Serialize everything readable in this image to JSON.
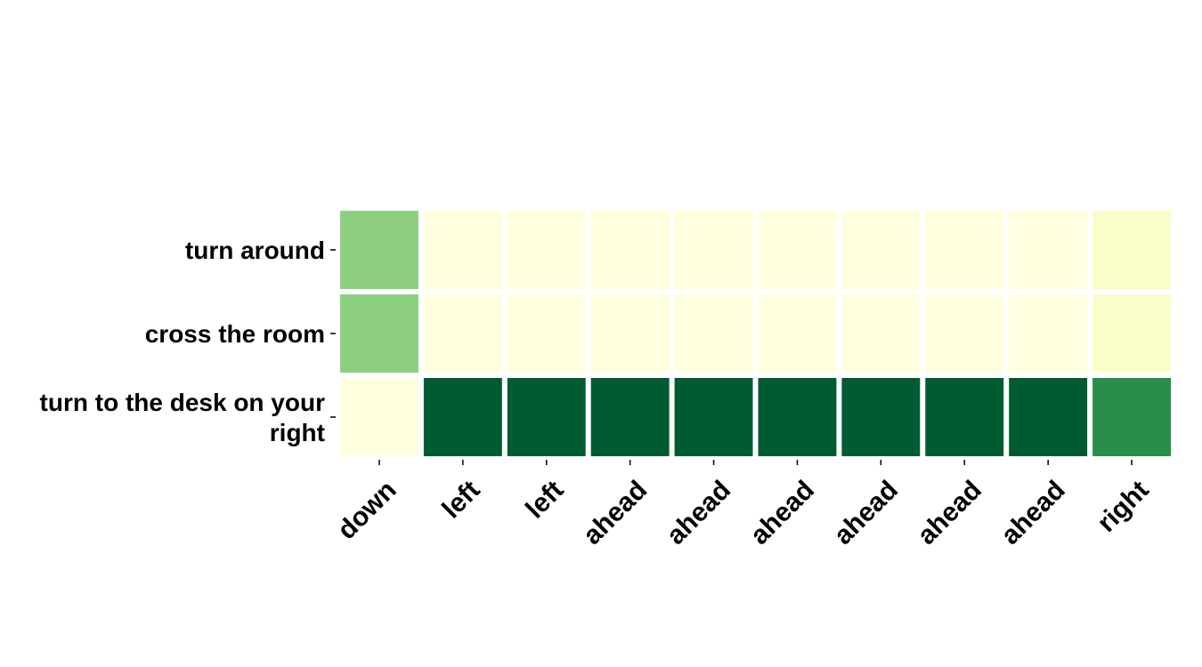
{
  "chart_data": {
    "type": "heatmap",
    "title": "",
    "xlabel": "",
    "ylabel": "",
    "x_categories": [
      "down",
      "left",
      "left",
      "ahead",
      "ahead",
      "ahead",
      "ahead",
      "ahead",
      "ahead",
      "right"
    ],
    "y_categories": [
      [
        "turn around"
      ],
      [
        "cross the room"
      ],
      [
        "turn to the desk on your",
        "right"
      ]
    ],
    "values": [
      [
        0.45,
        0.02,
        0.02,
        0.02,
        0.02,
        0.02,
        0.02,
        0.02,
        0.02,
        0.08
      ],
      [
        0.45,
        0.02,
        0.02,
        0.02,
        0.02,
        0.02,
        0.02,
        0.02,
        0.02,
        0.08
      ],
      [
        0.02,
        0.92,
        0.92,
        0.92,
        0.92,
        0.92,
        0.92,
        0.92,
        0.92,
        0.72
      ]
    ],
    "value_range": [
      0,
      1
    ],
    "colormap": "YlGn",
    "colormap_stops": [
      "#ffffe5",
      "#f7fcb9",
      "#d9f0a3",
      "#addd8e",
      "#78c679",
      "#41ab5d",
      "#238443",
      "#006837",
      "#004529"
    ],
    "grid": false,
    "legend": "none"
  }
}
